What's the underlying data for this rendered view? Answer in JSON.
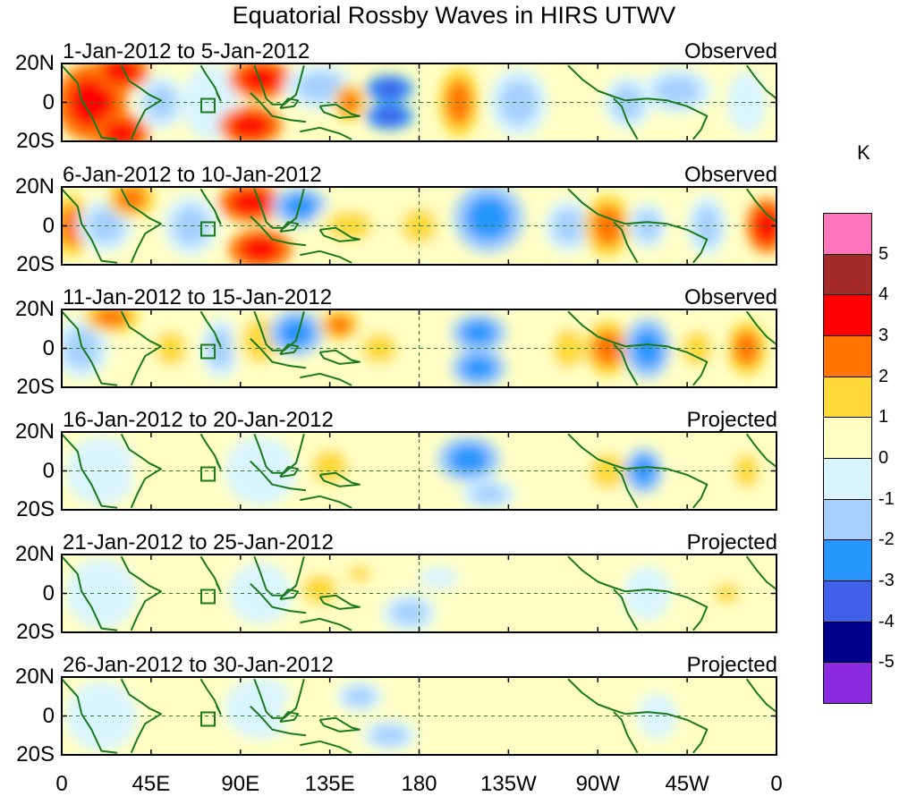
{
  "title": "Equatorial Rossby Waves in HIRS UTWV",
  "panels": [
    {
      "date_range": "1-Jan-2012 to 5-Jan-2012",
      "type": "Observed"
    },
    {
      "date_range": "6-Jan-2012 to 10-Jan-2012",
      "type": "Observed"
    },
    {
      "date_range": "11-Jan-2012 to 15-Jan-2012",
      "type": "Observed"
    },
    {
      "date_range": "16-Jan-2012 to 20-Jan-2012",
      "type": "Projected"
    },
    {
      "date_range": "21-Jan-2012 to 25-Jan-2012",
      "type": "Projected"
    },
    {
      "date_range": "26-Jan-2012 to 30-Jan-2012",
      "type": "Projected"
    }
  ],
  "lat_labels": [
    "20N",
    "0",
    "20S"
  ],
  "lon_labels": [
    "0",
    "45E",
    "90E",
    "135E",
    "180",
    "135W",
    "90W",
    "45W",
    "0"
  ],
  "colorbar": {
    "unit": "K",
    "labels": [
      "5",
      "4",
      "3",
      "2",
      "1",
      "0",
      "-1",
      "-2",
      "-3",
      "-4",
      "-5"
    ],
    "colors": [
      "#ff75bb",
      "#a52a2a",
      "#ff0000",
      "#ff7400",
      "#ffd935",
      "#ffffc4",
      "#d9f5ff",
      "#a5d0ff",
      "#2796ff",
      "#4060ea",
      "#00008f",
      "#8a2be2"
    ]
  },
  "coast_color": "#1a7a1a"
}
